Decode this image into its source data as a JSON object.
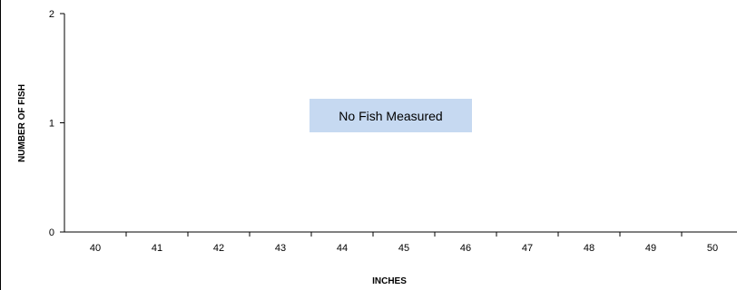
{
  "chart_data": {
    "type": "bar",
    "title": "",
    "xlabel": "INCHES",
    "ylabel": "NUMBER OF FISH",
    "categories": [
      "40",
      "41",
      "42",
      "43",
      "44",
      "45",
      "46",
      "47",
      "48",
      "49",
      "50"
    ],
    "values": [
      0,
      0,
      0,
      0,
      0,
      0,
      0,
      0,
      0,
      0,
      0
    ],
    "ylim": [
      0,
      2
    ],
    "yticks": [
      0,
      1,
      2
    ],
    "grid": false,
    "annotation": "No Fish Measured",
    "colors": {
      "annotation_bg": "#c6d9f1",
      "axis": "#000000"
    }
  }
}
